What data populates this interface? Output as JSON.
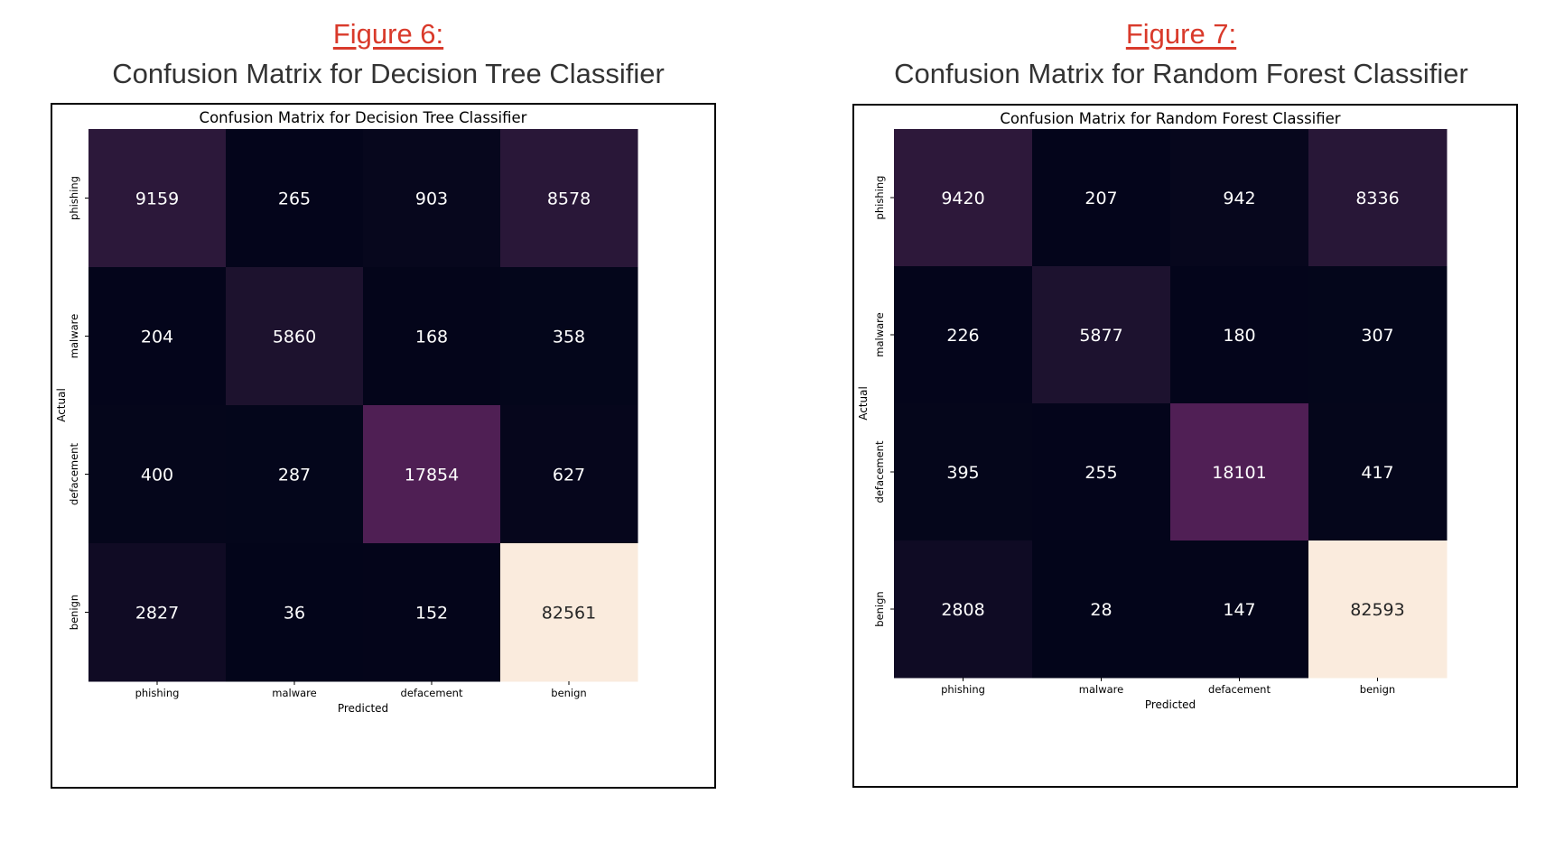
{
  "figures": [
    {
      "label": "Figure 6:",
      "caption": "Confusion Matrix for Decision Tree Classifier"
    },
    {
      "label": "Figure 7:",
      "caption": "Confusion Matrix for Random Forest Classifier"
    }
  ],
  "chart_data": [
    {
      "type": "heatmap",
      "title": "Confusion Matrix for Decision Tree Classifier",
      "xlabel": "Predicted",
      "ylabel": "Actual",
      "x_categories": [
        "phishing",
        "malware",
        "defacement",
        "benign"
      ],
      "y_categories": [
        "phishing",
        "malware",
        "defacement",
        "benign"
      ],
      "values": [
        [
          9159,
          265,
          903,
          8578
        ],
        [
          204,
          5860,
          168,
          358
        ],
        [
          400,
          287,
          17854,
          627
        ],
        [
          2827,
          36,
          152,
          82561
        ]
      ],
      "colormap": "rocket",
      "colorbar": false
    },
    {
      "type": "heatmap",
      "title": "Confusion Matrix for Random Forest Classifier",
      "xlabel": "Predicted",
      "ylabel": "Actual",
      "x_categories": [
        "phishing",
        "malware",
        "defacement",
        "benign"
      ],
      "y_categories": [
        "phishing",
        "malware",
        "defacement",
        "benign"
      ],
      "values": [
        [
          9420,
          207,
          942,
          8336
        ],
        [
          226,
          5877,
          180,
          307
        ],
        [
          395,
          255,
          18101,
          417
        ],
        [
          2808,
          28,
          147,
          82593
        ]
      ],
      "colormap": "rocket",
      "colorbar": false
    }
  ]
}
